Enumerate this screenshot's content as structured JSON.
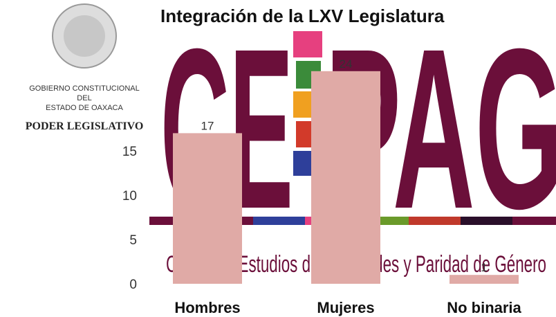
{
  "header": {
    "seal_lines": [
      "GOBIERNO CONSTITUCIONAL",
      "DEL",
      "ESTADO DE OAXACA"
    ],
    "branch": "PODER LEGISLATIVO"
  },
  "logo": {
    "left": "CE",
    "right": "PAG",
    "subtitle": "Centro de Estudios de Igualdades y Paridad de Género"
  },
  "chart_data": {
    "type": "bar",
    "title": "Integración de la LXV Legislatura",
    "categories": [
      "Hombres",
      "Mujeres",
      "No binaria"
    ],
    "values": [
      17,
      24,
      1
    ],
    "color": "#e0aaa6",
    "ylim": [
      0,
      25
    ],
    "yticks": [
      0,
      5,
      10,
      15
    ],
    "grid": false
  }
}
